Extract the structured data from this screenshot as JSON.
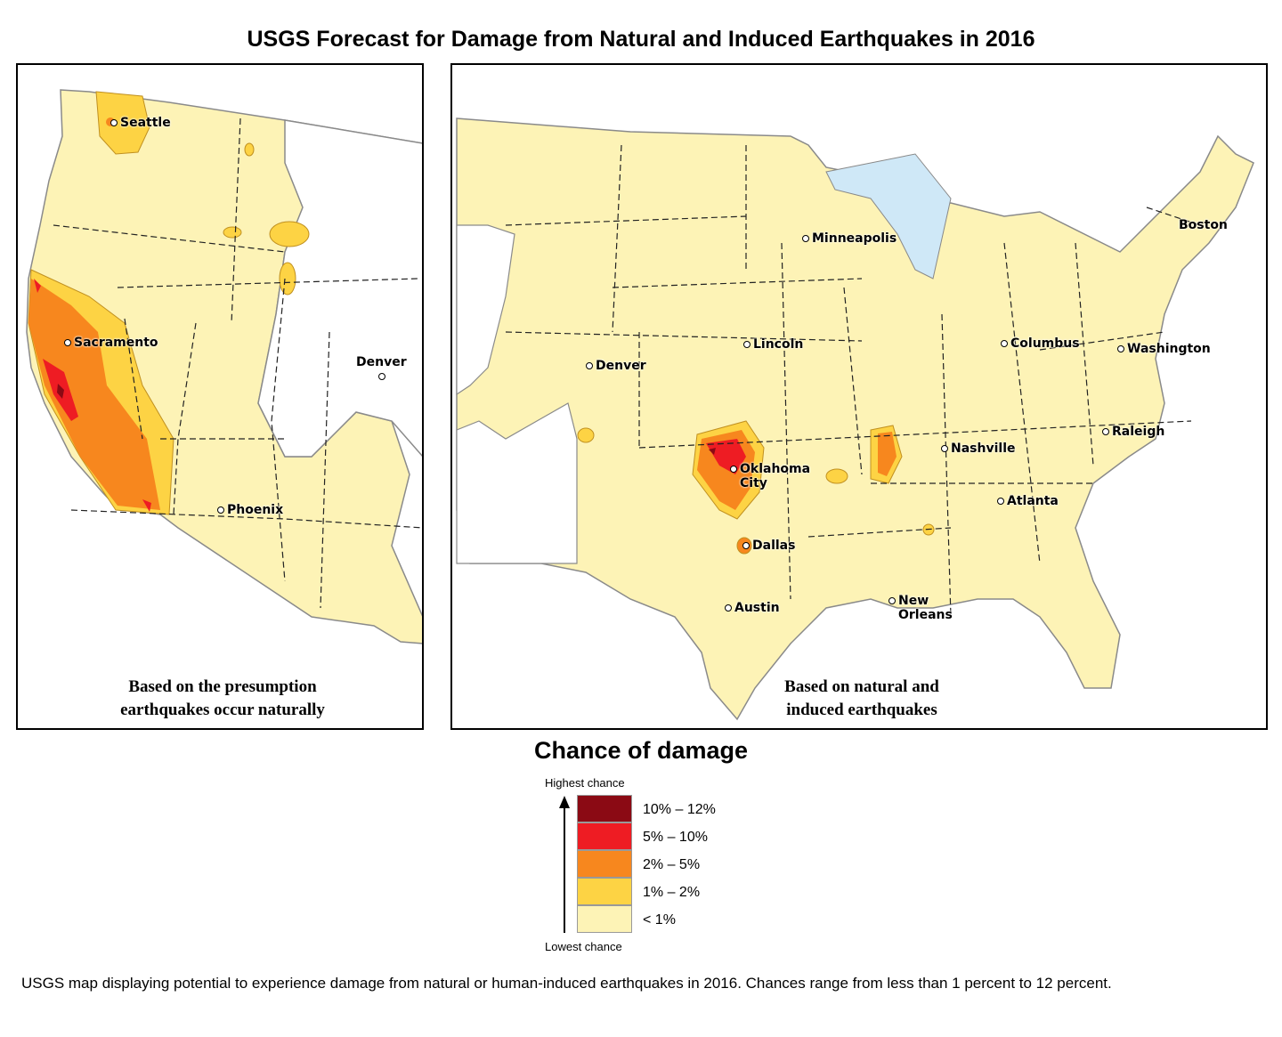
{
  "title": "USGS Forecast for Damage from Natural and Induced Earthquakes in 2016",
  "panels": {
    "left": {
      "caption_line1": "Based on the presumption",
      "caption_line2": "earthquakes occur naturally",
      "cities": [
        "Seattle",
        "Sacramento",
        "Denver",
        "Phoenix"
      ]
    },
    "right": {
      "caption_line1": "Based on natural and",
      "caption_line2": "induced earthquakes",
      "cities": [
        "Minneapolis",
        "Boston",
        "Lincoln",
        "Columbus",
        "Washington",
        "Denver",
        "Nashville",
        "Raleigh",
        "Oklahoma",
        "City",
        "Atlanta",
        "Dallas",
        "New",
        "Orleans",
        "Austin"
      ]
    }
  },
  "legend": {
    "title": "Chance of damage",
    "highest": "Highest chance",
    "lowest": "Lowest chance",
    "items": [
      {
        "label": "10% – 12%",
        "color": "#8b0a14"
      },
      {
        "label": "5% – 10%",
        "color": "#ee1c23"
      },
      {
        "label": "2% – 5%",
        "color": "#f7871e"
      },
      {
        "label": "1% – 2%",
        "color": "#fdd344"
      },
      {
        "label": "< 1%",
        "color": "#fdf3b6"
      }
    ]
  },
  "footnote": "USGS map displaying potential to experience damage from natural or human-induced earthquakes in 2016. Chances range from less than 1 percent to 12 percent."
}
